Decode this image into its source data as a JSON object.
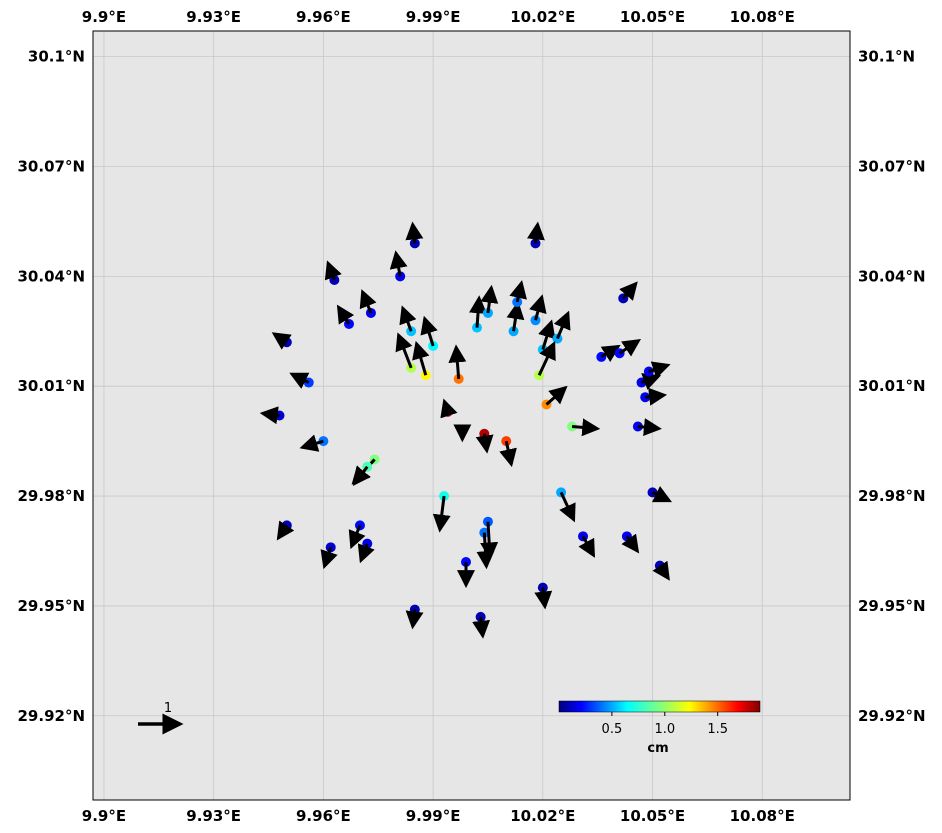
{
  "chart_data": {
    "type": "scatter",
    "subtype": "displacement-vector-map",
    "title": "",
    "x_ticks": [
      "9.9°E",
      "9.93°E",
      "9.96°E",
      "9.99°E",
      "10.02°E",
      "10.05°E",
      "10.08°E"
    ],
    "y_ticks": [
      "30.1°N",
      "30.07°N",
      "30.04°N",
      "30.01°N",
      "29.98°N",
      "29.95°N",
      "29.92°N"
    ],
    "xlim": [
      9.897,
      10.104
    ],
    "ylim": [
      29.897,
      30.107
    ],
    "grid": true,
    "background": "#e6e6e6",
    "reference_vector": {
      "label": "1",
      "value": 1.0
    },
    "colorbar": {
      "colormap": "jet",
      "range": [
        0,
        1.9
      ],
      "ticks": [
        "0.5",
        "1.0",
        "1.5"
      ],
      "unit": "cm",
      "placement": "bottom-right"
    },
    "stations": [
      {
        "lon": 9.998,
        "lat": 29.998,
        "mag": 1.85,
        "dx": 0.0,
        "dy": -0.22
      },
      {
        "lon": 10.004,
        "lat": 29.997,
        "mag": 1.8,
        "dx": 0.06,
        "dy": -0.4
      },
      {
        "lon": 10.01,
        "lat": 29.995,
        "mag": 1.55,
        "dx": 0.12,
        "dy": -0.55
      },
      {
        "lon": 9.994,
        "lat": 30.003,
        "mag": 1.75,
        "dx": -0.08,
        "dy": 0.25
      },
      {
        "lon": 9.997,
        "lat": 30.012,
        "mag": 1.45,
        "dx": -0.06,
        "dy": 0.75
      },
      {
        "lon": 9.988,
        "lat": 30.013,
        "mag": 1.2,
        "dx": -0.22,
        "dy": 0.75
      },
      {
        "lon": 9.984,
        "lat": 30.015,
        "mag": 1.05,
        "dx": -0.3,
        "dy": 0.78
      },
      {
        "lon": 9.99,
        "lat": 30.021,
        "mag": 0.7,
        "dx": -0.2,
        "dy": 0.65
      },
      {
        "lon": 9.984,
        "lat": 30.025,
        "mag": 0.6,
        "dx": -0.2,
        "dy": 0.55
      },
      {
        "lon": 10.002,
        "lat": 30.026,
        "mag": 0.6,
        "dx": 0.05,
        "dy": 0.7
      },
      {
        "lon": 10.005,
        "lat": 30.03,
        "mag": 0.55,
        "dx": 0.08,
        "dy": 0.6
      },
      {
        "lon": 10.012,
        "lat": 30.025,
        "mag": 0.55,
        "dx": 0.1,
        "dy": 0.65
      },
      {
        "lon": 10.018,
        "lat": 30.028,
        "mag": 0.5,
        "dx": 0.15,
        "dy": 0.55
      },
      {
        "lon": 10.013,
        "lat": 30.033,
        "mag": 0.45,
        "dx": 0.1,
        "dy": 0.45
      },
      {
        "lon": 10.02,
        "lat": 30.02,
        "mag": 0.6,
        "dx": 0.2,
        "dy": 0.65
      },
      {
        "lon": 10.024,
        "lat": 30.023,
        "mag": 0.55,
        "dx": 0.25,
        "dy": 0.6
      },
      {
        "lon": 10.019,
        "lat": 30.013,
        "mag": 1.05,
        "dx": 0.35,
        "dy": 0.75
      },
      {
        "lon": 10.021,
        "lat": 30.005,
        "mag": 1.4,
        "dx": 0.45,
        "dy": 0.4
      },
      {
        "lon": 10.028,
        "lat": 29.999,
        "mag": 0.95,
        "dx": 0.6,
        "dy": -0.05
      },
      {
        "lon": 10.025,
        "lat": 29.981,
        "mag": 0.55,
        "dx": 0.3,
        "dy": -0.65
      },
      {
        "lon": 9.993,
        "lat": 29.98,
        "mag": 0.75,
        "dx": -0.1,
        "dy": -0.8
      },
      {
        "lon": 9.974,
        "lat": 29.99,
        "mag": 0.95,
        "dx": -0.5,
        "dy": -0.55
      },
      {
        "lon": 9.972,
        "lat": 29.988,
        "mag": 0.85,
        "dx": -0.3,
        "dy": -0.4
      },
      {
        "lon": 9.96,
        "lat": 29.995,
        "mag": 0.45,
        "dx": -0.5,
        "dy": -0.15
      },
      {
        "lon": 9.956,
        "lat": 30.011,
        "mag": 0.35,
        "dx": -0.4,
        "dy": 0.2
      },
      {
        "lon": 9.967,
        "lat": 30.027,
        "mag": 0.25,
        "dx": -0.25,
        "dy": 0.4
      },
      {
        "lon": 9.973,
        "lat": 30.03,
        "mag": 0.2,
        "dx": -0.2,
        "dy": 0.5
      },
      {
        "lon": 9.981,
        "lat": 30.04,
        "mag": 0.2,
        "dx": -0.1,
        "dy": 0.55
      },
      {
        "lon": 10.004,
        "lat": 29.97,
        "mag": 0.45,
        "dx": 0.05,
        "dy": -0.8
      },
      {
        "lon": 10.005,
        "lat": 29.973,
        "mag": 0.4,
        "dx": 0.05,
        "dy": -0.85
      },
      {
        "lon": 9.999,
        "lat": 29.962,
        "mag": 0.25,
        "dx": 0.0,
        "dy": -0.55
      },
      {
        "lon": 9.97,
        "lat": 29.972,
        "mag": 0.25,
        "dx": -0.2,
        "dy": -0.5
      },
      {
        "lon": 9.972,
        "lat": 29.967,
        "mag": 0.2,
        "dx": -0.15,
        "dy": -0.4
      },
      {
        "lon": 10.031,
        "lat": 29.969,
        "mag": 0.2,
        "dx": 0.25,
        "dy": -0.45
      },
      {
        "lon": 10.043,
        "lat": 29.969,
        "mag": 0.2,
        "dx": 0.25,
        "dy": -0.35
      },
      {
        "lon": 10.036,
        "lat": 30.018,
        "mag": 0.25,
        "dx": 0.4,
        "dy": 0.25
      },
      {
        "lon": 10.041,
        "lat": 30.019,
        "mag": 0.25,
        "dx": 0.45,
        "dy": 0.3
      },
      {
        "lon": 10.047,
        "lat": 30.011,
        "mag": 0.2,
        "dx": 0.4,
        "dy": 0.15
      },
      {
        "lon": 10.049,
        "lat": 30.014,
        "mag": 0.2,
        "dx": 0.45,
        "dy": 0.15
      },
      {
        "lon": 10.048,
        "lat": 30.007,
        "mag": 0.2,
        "dx": 0.45,
        "dy": 0.05
      },
      {
        "lon": 10.046,
        "lat": 29.999,
        "mag": 0.2,
        "dx": 0.5,
        "dy": -0.05
      },
      {
        "lon": 10.05,
        "lat": 29.981,
        "mag": 0.1,
        "dx": 0.4,
        "dy": -0.2
      },
      {
        "lon": 9.962,
        "lat": 29.966,
        "mag": 0.15,
        "dx": -0.15,
        "dy": -0.45
      },
      {
        "lon": 9.95,
        "lat": 29.972,
        "mag": 0.1,
        "dx": -0.2,
        "dy": -0.3
      },
      {
        "lon": 9.948,
        "lat": 30.002,
        "mag": 0.15,
        "dx": -0.4,
        "dy": 0.05
      },
      {
        "lon": 9.95,
        "lat": 30.022,
        "mag": 0.1,
        "dx": -0.3,
        "dy": 0.2
      },
      {
        "lon": 9.963,
        "lat": 30.039,
        "mag": 0.1,
        "dx": -0.15,
        "dy": 0.4
      },
      {
        "lon": 9.985,
        "lat": 30.049,
        "mag": 0.1,
        "dx": -0.05,
        "dy": 0.45
      },
      {
        "lon": 10.018,
        "lat": 30.049,
        "mag": 0.1,
        "dx": 0.05,
        "dy": 0.45
      },
      {
        "lon": 10.042,
        "lat": 30.034,
        "mag": 0.1,
        "dx": 0.3,
        "dy": 0.35
      },
      {
        "lon": 10.052,
        "lat": 29.961,
        "mag": 0.1,
        "dx": 0.2,
        "dy": -0.3
      },
      {
        "lon": 10.02,
        "lat": 29.955,
        "mag": 0.1,
        "dx": 0.05,
        "dy": -0.45
      },
      {
        "lon": 9.985,
        "lat": 29.949,
        "mag": 0.1,
        "dx": -0.05,
        "dy": -0.4
      },
      {
        "lon": 10.003,
        "lat": 29.947,
        "mag": 0.1,
        "dx": 0.05,
        "dy": -0.45
      }
    ]
  }
}
